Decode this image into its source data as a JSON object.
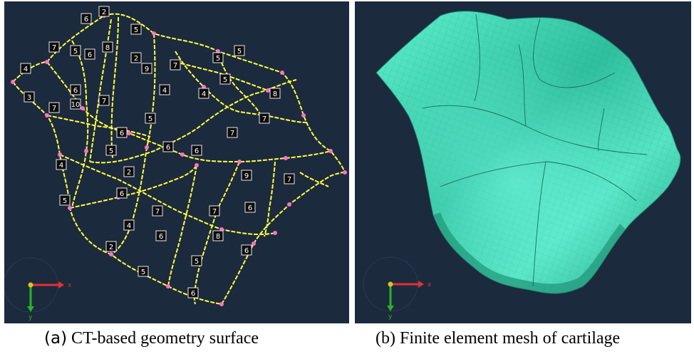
{
  "panel_a": {
    "node_labels": [
      "6",
      "2",
      "5",
      "7",
      "8",
      "5",
      "6",
      "4",
      "2",
      "5",
      "5",
      "7",
      "9",
      "3",
      "4",
      "6",
      "8",
      "4",
      "5",
      "7",
      "10",
      "7",
      "5",
      "6",
      "7",
      "7",
      "6",
      "5",
      "4",
      "6",
      "2",
      "9",
      "7",
      "6",
      "5",
      "7",
      "7",
      "6",
      "4",
      "6",
      "8",
      "2",
      "6",
      "5",
      "5",
      "6"
    ],
    "axis": {
      "x": "x",
      "y": "y",
      "x_color": "#e53030",
      "y_color": "#28b428"
    }
  },
  "panel_b": {
    "surface_color": "#3fd6b4",
    "axis": {
      "x": "x",
      "y": "y",
      "x_color": "#e53030",
      "y_color": "#28b428"
    }
  },
  "captions": {
    "a_label": "(a)",
    "a_text": " CT-based geometry surface",
    "b_text": "(b) Finite element mesh of cartilage"
  },
  "colors": {
    "background": "#1c2a3e",
    "curve": "#ffff40",
    "node": "#ff70c8"
  }
}
